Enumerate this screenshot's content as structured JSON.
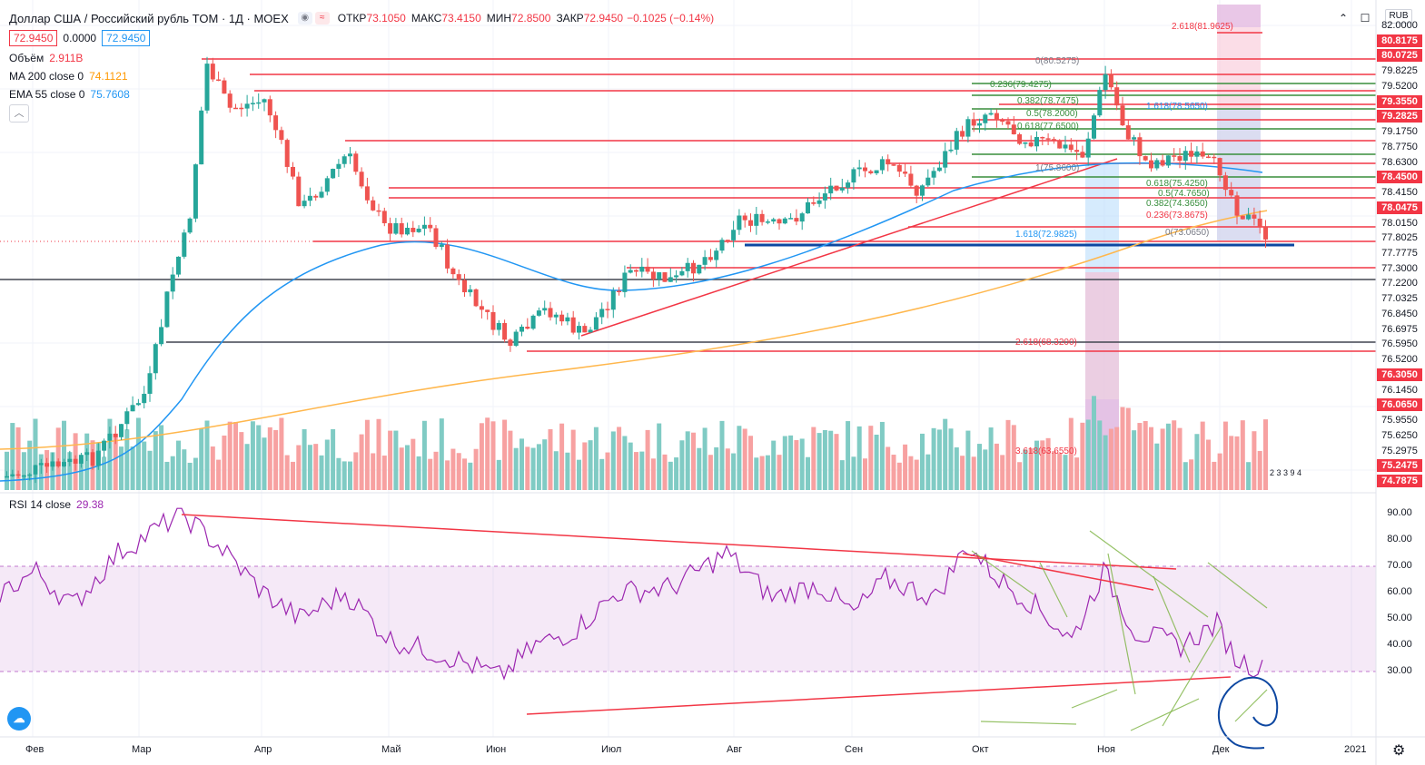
{
  "header": {
    "title": "Доллар США / Российский рубль TOM · 1Д · MOEX",
    "ohlc": [
      {
        "k": "ОТКР",
        "v": "73.1050"
      },
      {
        "k": "МАКС",
        "v": "73.4150"
      },
      {
        "k": "МИН",
        "v": "72.8500"
      },
      {
        "k": "ЗАКР",
        "v": "72.9450"
      }
    ],
    "change": "−0.1025 (−0.14%)",
    "bid": "72.9450",
    "spread": "0.0000",
    "ask": "72.9450"
  },
  "indicators": [
    {
      "label": "Объём",
      "value": "2.911B",
      "color": "#f23645"
    },
    {
      "label": "MA 200 close 0",
      "value": "74.1121",
      "color": "#ff9800"
    },
    {
      "label": "EMA 55 close 0",
      "value": "75.7608",
      "color": "#2196f3"
    }
  ],
  "rsi": {
    "label": "RSI 14 close",
    "value": "29.38"
  },
  "currency": "RUB",
  "price_axis": [
    "82.0000",
    "80.8175",
    "80.0725",
    "79.8225",
    "79.5200",
    "79.3550",
    "79.2825",
    "79.1750",
    "78.7750",
    "78.6300",
    "78.4500",
    "78.4150",
    "78.0475",
    "78.0150",
    "77.8025",
    "77.7775",
    "77.3000",
    "77.2200",
    "77.0325",
    "76.8450",
    "76.6975",
    "76.5950",
    "76.5200",
    "76.3050",
    "76.1450",
    "76.0650",
    "75.9550",
    "75.6250",
    "75.2975",
    "75.2475",
    "74.7875"
  ],
  "price_axis_red": [
    "80.8175",
    "80.0725",
    "79.3550",
    "79.2825",
    "78.4500",
    "78.0475",
    "76.3050",
    "76.0650",
    "75.2475",
    "74.7875"
  ],
  "rsi_axis": [
    "90.00",
    "80.00",
    "70.00",
    "60.00",
    "50.00",
    "40.00",
    "30.00"
  ],
  "time_axis": [
    "Фев",
    "Мар",
    "Апр",
    "Май",
    "Июн",
    "Июл",
    "Авг",
    "Сен",
    "Окт",
    "Ноя",
    "Дек",
    "2021"
  ],
  "fib_labels": [
    "2.618(81.9625)",
    "0(80.5275)",
    "0.236(79.4275)",
    "0.382(78.7475)",
    "0.5(78.2000)",
    "0.618(77.6500)",
    "1(75.8600)",
    "1.618(78.5650)",
    "0.618(75.4250)",
    "0.5(74.7650)",
    "0.382(74.3650)",
    "0.236(73.8675)",
    "0(73.0650)",
    "1.618(72.9825)",
    "2.618(68.3200)",
    "3.618(63.6550)"
  ],
  "volume_marker": "2 3 3 9 4",
  "colors": {
    "up": "#26a69a",
    "down": "#ef5350",
    "fib_red": "#f23645",
    "fib_green": "#388e3c",
    "ema": "#2196f3",
    "ma": "#ff9800",
    "rsi_line": "#9c27b0"
  }
}
